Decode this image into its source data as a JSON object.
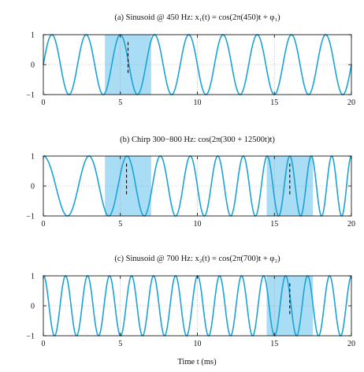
{
  "chart_data": [
    {
      "type": "line",
      "title": "(a) Sinusoid @ 450 Hz: x₁(t) = cos(2π(450)t + φ₁)",
      "signal": "sinusoid",
      "frequency_hz": 450,
      "phase_rad": -1.57,
      "xlim": [
        0,
        20
      ],
      "ylim": [
        -1,
        1
      ],
      "xticks": [
        0,
        5,
        10,
        15,
        20
      ],
      "yticks": [
        -1,
        0,
        1
      ],
      "grid": true,
      "highlight_windows": [
        [
          4,
          7
        ]
      ],
      "markers_x": [
        5.5
      ]
    },
    {
      "type": "line",
      "title": "(b) Chirp 300−800 Hz: cos(2π(300 + 12500t)t)",
      "signal": "chirp",
      "start_frequency_hz": 300,
      "chirp_rate_hz_per_s": 12500,
      "xlim": [
        0,
        20
      ],
      "ylim": [
        -1,
        1
      ],
      "xticks": [
        0,
        5,
        10,
        15,
        20
      ],
      "yticks": [
        -1,
        0,
        1
      ],
      "grid": true,
      "highlight_windows": [
        [
          4,
          7
        ],
        [
          14.5,
          17.5
        ]
      ],
      "markers_x": [
        5.4,
        16
      ]
    },
    {
      "type": "line",
      "title": "(c) Sinusoid @ 700 Hz: x₂(t) = cos(2π(700)t + φ₂)",
      "signal": "sinusoid",
      "frequency_hz": 700,
      "phase_rad": -0.06,
      "xlim": [
        0,
        20
      ],
      "ylim": [
        -1,
        1
      ],
      "xticks": [
        0,
        5,
        10,
        15,
        20
      ],
      "yticks": [
        -1,
        0,
        1
      ],
      "grid": true,
      "highlight_windows": [
        [
          14.5,
          17.5
        ]
      ],
      "markers_x": [
        16
      ]
    }
  ],
  "xlabel": "Time t (ms)",
  "colors": {
    "signal": "#1ba3d6",
    "highlight": "#a9dcf5",
    "marker": "#000000",
    "axis": "#000000",
    "grid": "#9a9a9a"
  }
}
